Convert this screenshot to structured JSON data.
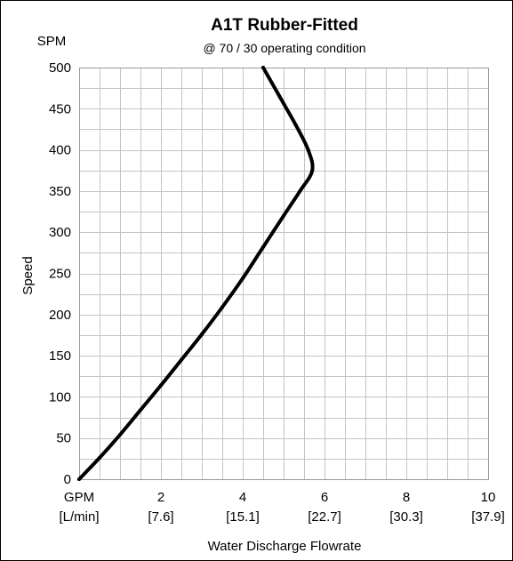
{
  "chart_data": {
    "type": "line",
    "title": "A1T Rubber-Fitted",
    "subtitle": "@ 70 / 30 operating condition",
    "xlabel": "Water Discharge Flowrate",
    "ylabel": "Speed",
    "y_unit_label": "SPM",
    "x_unit_label": "GPM",
    "x_secondary_unit_label": "[L/min]",
    "xlim": [
      0,
      10
    ],
    "ylim": [
      0,
      500
    ],
    "grid": true,
    "x_minor_step": 0.5,
    "y_minor_step": 25,
    "x_ticks": [
      {
        "value": 2,
        "label": "2",
        "secondary": "[7.6]"
      },
      {
        "value": 4,
        "label": "4",
        "secondary": "[15.1]"
      },
      {
        "value": 6,
        "label": "6",
        "secondary": "[22.7]"
      },
      {
        "value": 8,
        "label": "8",
        "secondary": "[30.3]"
      },
      {
        "value": 10,
        "label": "10",
        "secondary": "[37.9]"
      }
    ],
    "y_ticks": [
      {
        "value": 0,
        "label": "0"
      },
      {
        "value": 50,
        "label": "50"
      },
      {
        "value": 100,
        "label": "100"
      },
      {
        "value": 150,
        "label": "150"
      },
      {
        "value": 200,
        "label": "200"
      },
      {
        "value": 250,
        "label": "250"
      },
      {
        "value": 300,
        "label": "300"
      },
      {
        "value": 350,
        "label": "350"
      },
      {
        "value": 400,
        "label": "400"
      },
      {
        "value": 450,
        "label": "450"
      },
      {
        "value": 500,
        "label": "500"
      }
    ],
    "series": [
      {
        "color": "#000000",
        "points": [
          {
            "x": 0.0,
            "y": 0
          },
          {
            "x": 0.5,
            "y": 26
          },
          {
            "x": 1.0,
            "y": 54
          },
          {
            "x": 1.5,
            "y": 84
          },
          {
            "x": 2.0,
            "y": 114
          },
          {
            "x": 2.5,
            "y": 145
          },
          {
            "x": 3.0,
            "y": 176
          },
          {
            "x": 3.5,
            "y": 209
          },
          {
            "x": 4.0,
            "y": 244
          },
          {
            "x": 4.5,
            "y": 282
          },
          {
            "x": 5.0,
            "y": 320
          },
          {
            "x": 5.4,
            "y": 350
          },
          {
            "x": 5.7,
            "y": 375
          },
          {
            "x": 5.6,
            "y": 400
          },
          {
            "x": 5.3,
            "y": 430
          },
          {
            "x": 4.9,
            "y": 465
          },
          {
            "x": 4.5,
            "y": 500
          }
        ]
      }
    ]
  }
}
